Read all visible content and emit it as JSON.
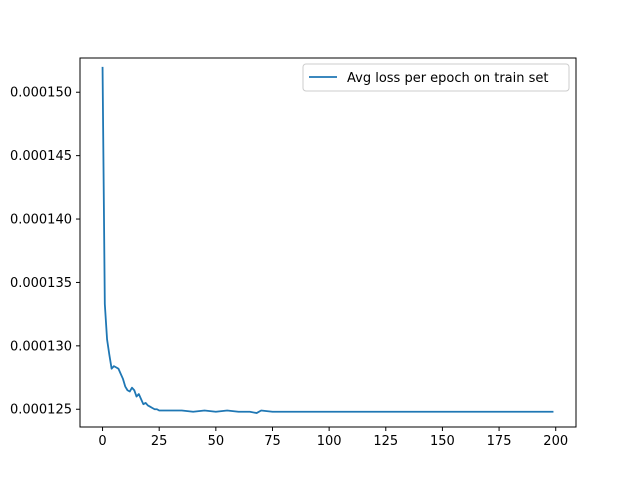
{
  "chart_data": {
    "type": "line",
    "title": "",
    "xlabel": "",
    "ylabel": "",
    "xlim": [
      -9.95,
      208.95
    ],
    "ylim": [
      0.0001236,
      0.0001527
    ],
    "xticks": [
      0,
      25,
      50,
      75,
      100,
      125,
      150,
      175,
      200
    ],
    "xtick_labels": [
      "0",
      "25",
      "50",
      "75",
      "100",
      "125",
      "150",
      "175",
      "200"
    ],
    "yticks": [
      0.000125,
      0.00013,
      0.000135,
      0.00014,
      0.000145,
      0.00015
    ],
    "ytick_labels": [
      "0.000125",
      "0.000130",
      "0.000135",
      "0.000140",
      "0.000145",
      "0.000150"
    ],
    "grid": false,
    "legend_position": "top-right",
    "series": [
      {
        "name": "Avg loss per epoch on train set",
        "color": "#1f77b4",
        "x": [
          0,
          1,
          2,
          3,
          4,
          5,
          6,
          7,
          8,
          9,
          10,
          11,
          12,
          13,
          14,
          15,
          16,
          17,
          18,
          19,
          20,
          21,
          22,
          23,
          24,
          25,
          26,
          27,
          28,
          29,
          30,
          35,
          40,
          45,
          50,
          55,
          60,
          65,
          68,
          70,
          75,
          80,
          85,
          90,
          95,
          100,
          105,
          110,
          115,
          120,
          125,
          130,
          135,
          140,
          145,
          150,
          155,
          160,
          165,
          170,
          175,
          180,
          185,
          190,
          195,
          199
        ],
        "y": [
          0.000152,
          0.0001333,
          0.0001305,
          0.0001293,
          0.0001282,
          0.0001284,
          0.0001283,
          0.0001282,
          0.0001278,
          0.0001274,
          0.0001268,
          0.0001265,
          0.0001264,
          0.0001267,
          0.0001265,
          0.000126,
          0.0001262,
          0.0001258,
          0.0001254,
          0.0001255,
          0.0001253,
          0.0001252,
          0.0001251,
          0.000125,
          0.000125,
          0.0001249,
          0.0001249,
          0.0001249,
          0.0001249,
          0.0001249,
          0.0001249,
          0.0001249,
          0.0001248,
          0.0001249,
          0.0001248,
          0.0001249,
          0.0001248,
          0.0001248,
          0.0001247,
          0.0001249,
          0.0001248,
          0.0001248,
          0.0001248,
          0.0001248,
          0.0001248,
          0.0001248,
          0.0001248,
          0.0001248,
          0.0001248,
          0.0001248,
          0.0001248,
          0.0001248,
          0.0001248,
          0.0001248,
          0.0001248,
          0.0001248,
          0.0001248,
          0.0001248,
          0.0001248,
          0.0001248,
          0.0001248,
          0.0001248,
          0.0001248,
          0.0001248,
          0.0001248,
          0.0001248
        ]
      }
    ]
  }
}
